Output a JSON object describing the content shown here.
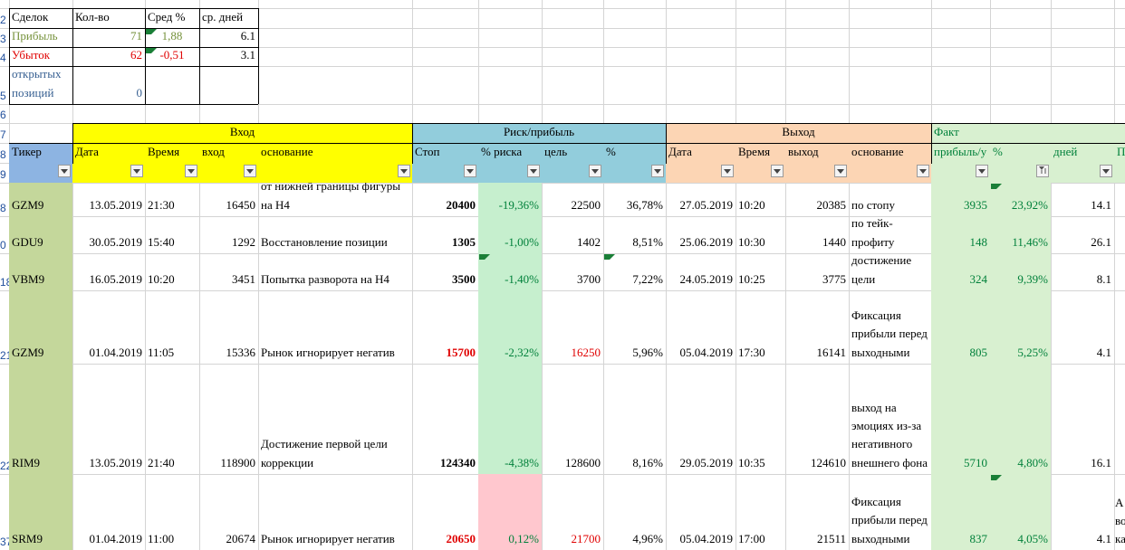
{
  "summary": {
    "headers": [
      "Сделок",
      "Кол-во",
      "Сред %",
      "ср. дней"
    ],
    "rows": [
      {
        "label": "Прибыль",
        "count": "71",
        "avg": "1,88",
        "days": "6.1"
      },
      {
        "label": "Убыток",
        "count": "62",
        "avg": "-0,51",
        "days": "3.1"
      },
      {
        "label": "открытых позиций",
        "count": "0",
        "avg": "",
        "days": ""
      }
    ]
  },
  "groups": {
    "entry": "Вход",
    "risk": "Риск/прибыль",
    "exit": "Выход",
    "fact": "Факт"
  },
  "columns": {
    "ticker": "Тикер",
    "date": "Дата",
    "time": "Время",
    "entry": "вход",
    "reason": "основание",
    "stop": "Стоп",
    "risk_pct": "% риска",
    "target": "цель",
    "pct": "%",
    "exit_date": "Дата",
    "exit_time": "Время",
    "exit": "выход",
    "exit_reason": "основание",
    "profit": "прибыль/у",
    "fact_pct": "%",
    "days": "дней",
    "extra": "П"
  },
  "row_numbers": [
    "2",
    "3",
    "4",
    "5",
    "6",
    "7",
    "8",
    "9",
    "8",
    "0",
    "18",
    "21",
    "22",
    "37"
  ],
  "trades": [
    {
      "ticker": "GZM9",
      "date": "13.05.2019",
      "time": "21:30",
      "entry": "16450",
      "reason": "от нижней границы фигуры на Н4",
      "stop": "20400",
      "risk": "-19,36%",
      "target": "22500",
      "pct": "36,78%",
      "exit_date": "27.05.2019",
      "exit_time": "10:20",
      "exit": "20385",
      "exit_reason": "по стопу",
      "profit": "3935",
      "fact_pct": "23,92%",
      "days": "14.1",
      "extra": ""
    },
    {
      "ticker": "GDU9",
      "date": "30.05.2019",
      "time": "15:40",
      "entry": "1292",
      "reason": "Восстановление позиции",
      "stop": "1305",
      "risk": "-1,00%",
      "target": "1402",
      "pct": "8,51%",
      "exit_date": "25.06.2019",
      "exit_time": "10:30",
      "exit": "1440",
      "exit_reason": "по тейк-профиту",
      "profit": "148",
      "fact_pct": "11,46%",
      "days": "26.1",
      "extra": ""
    },
    {
      "ticker": "VBM9",
      "date": "16.05.2019",
      "time": "10:20",
      "entry": "3451",
      "reason": "Попытка разворота на Н4",
      "stop": "3500",
      "risk": "-1,40%",
      "target": "3700",
      "pct": "7,22%",
      "exit_date": "24.05.2019",
      "exit_time": "10:25",
      "exit": "3775",
      "exit_reason": "достижение цели",
      "profit": "324",
      "fact_pct": "9,39%",
      "days": "8.1",
      "extra": ""
    },
    {
      "ticker": "GZM9",
      "date": "01.04.2019",
      "time": "11:05",
      "entry": "15336",
      "reason": "Рынок игнорирует негатив",
      "stop": "15700",
      "risk": "-2,32%",
      "target": "16250",
      "pct": "5,96%",
      "exit_date": "05.04.2019",
      "exit_time": "17:30",
      "exit": "16141",
      "exit_reason": "Фиксация прибыли перед выходными",
      "profit": "805",
      "fact_pct": "5,25%",
      "days": "4.1",
      "extra": ""
    },
    {
      "ticker": "RIM9",
      "date": "13.05.2019",
      "time": "21:40",
      "entry": "118900",
      "reason": "Достижение первой цели коррекции",
      "stop": "124340",
      "risk": "-4,38%",
      "target": "128600",
      "pct": "8,16%",
      "exit_date": "29.05.2019",
      "exit_time": "10:35",
      "exit": "124610",
      "exit_reason": "выход на эмоциях из-за негативного внешнего фона",
      "profit": "5710",
      "fact_pct": "4,80%",
      "days": "16.1",
      "extra": ""
    },
    {
      "ticker": "SRM9",
      "date": "01.04.2019",
      "time": "11:00",
      "entry": "20674",
      "reason": "Рынок игнорирует негатив",
      "stop": "20650",
      "risk": "0,12%",
      "target": "21700",
      "pct": "4,96%",
      "exit_date": "05.04.2019",
      "exit_time": "17:00",
      "exit": "21511",
      "exit_reason": "Фиксация прибыли перед выходными",
      "profit": "837",
      "fact_pct": "4,05%",
      "days": "4.1",
      "extra": "А во ка"
    }
  ],
  "colors": {
    "yellow": "#ffff00",
    "blue_header": "#92cddc",
    "peach": "#fcd5b4",
    "green_header": "#d8f0d0",
    "ticker_green": "#c4d79b",
    "ticker_header": "#8db4e2",
    "risk_green": "#c6efce",
    "risk_red": "#ffc7ce",
    "fact_green": "#d8f0d0"
  }
}
